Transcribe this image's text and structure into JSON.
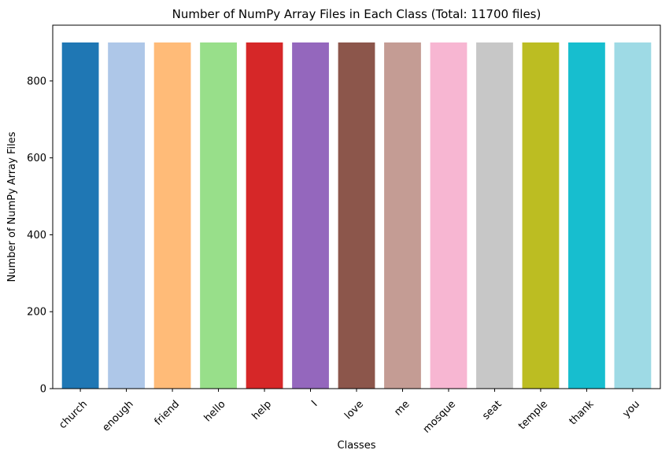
{
  "chart_data": {
    "type": "bar",
    "title": "Number of NumPy Array Files in Each Class (Total: 11700 files)",
    "xlabel": "Classes",
    "ylabel": "Number of NumPy Array Files",
    "categories": [
      "church",
      "enough",
      "friend",
      "hello",
      "help",
      "I",
      "love",
      "me",
      "mosque",
      "seat",
      "temple",
      "thank",
      "you"
    ],
    "values": [
      900,
      900,
      900,
      900,
      900,
      900,
      900,
      900,
      900,
      900,
      900,
      900,
      900
    ],
    "colors": [
      "#1f77b4",
      "#aec7e8",
      "#ffbb78",
      "#98df8a",
      "#d62728",
      "#9467bd",
      "#8c564b",
      "#c49c94",
      "#f7b6d2",
      "#c7c7c7",
      "#bcbd22",
      "#17becf",
      "#9edae5"
    ],
    "ylim": [
      0,
      945
    ],
    "yticks": [
      0,
      200,
      400,
      600,
      800
    ],
    "grid": false,
    "legend": "none"
  }
}
